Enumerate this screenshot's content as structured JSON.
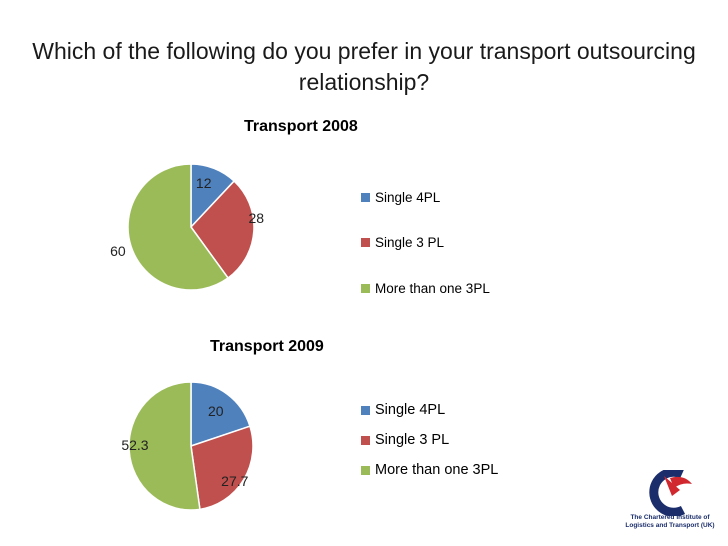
{
  "title": "Which of the following do you prefer in your transport outsourcing relationship?",
  "colors": {
    "blue": "#4f81bd",
    "red": "#c0504d",
    "green": "#9bbb59"
  },
  "chart_data": [
    {
      "type": "pie",
      "title": "Transport 2008",
      "categories": [
        "Single 4PL",
        "Single 3 PL",
        "More than one 3PL"
      ],
      "legend": [
        "Single 4PL",
        "Single 3 PL",
        "More than  one 3PL"
      ],
      "values": [
        12,
        28,
        60
      ],
      "labels": [
        "12",
        "28",
        "60"
      ],
      "legend_placement": "right"
    },
    {
      "type": "pie",
      "title": "Transport 2009",
      "categories": [
        "Single 4PL",
        "Single 3 PL",
        "More than one 3PL"
      ],
      "legend": [
        "Single 4PL",
        "Single 3 PL",
        "More than one 3PL"
      ],
      "values": [
        20,
        27.7,
        52.3
      ],
      "labels": [
        "20",
        "27.7",
        "52.3"
      ],
      "legend_placement": "right"
    }
  ],
  "logo": {
    "icon": "cilt-logo-icon",
    "line1": "The Chartered Institute of",
    "line2": "Logistics and Transport (UK)"
  }
}
